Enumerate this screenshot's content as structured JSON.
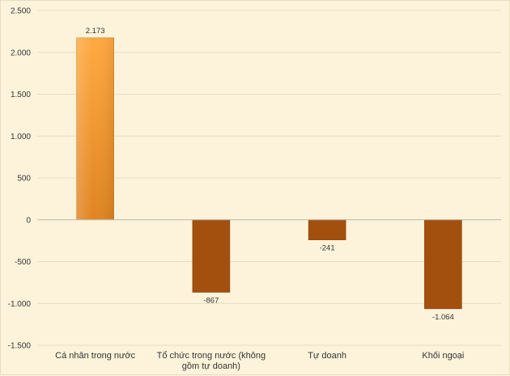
{
  "colors": {
    "background": "#fdf3da",
    "grid": "#e6dcc4",
    "axis": "#bbbbbb",
    "positive_top": "#ffa940",
    "positive_bottom": "#e08420",
    "negative": "#a34f0e",
    "text": "#333333"
  },
  "chart_data": {
    "type": "bar",
    "title": "",
    "xlabel": "",
    "ylabel": "",
    "grid": true,
    "legend": "none",
    "ylim": [
      -1500,
      2500
    ],
    "yticks": [
      2500,
      2000,
      1500,
      1000,
      500,
      0,
      -500,
      -1000,
      -1500
    ],
    "ytick_labels": [
      "2.500",
      "2.000",
      "1.500",
      "1.000",
      "500",
      "0",
      "-500",
      "-1.000",
      "-1.500"
    ],
    "categories": [
      [
        "Cá nhân trong nước"
      ],
      [
        "Tổ chức trong nước (không",
        "gồm tự doanh)"
      ],
      [
        "Tự doanh"
      ],
      [
        "Khối ngoại"
      ]
    ],
    "values": [
      2173,
      -867,
      -241,
      -1064
    ],
    "data_labels": [
      "2.173",
      "-867",
      "-241",
      "-1.064"
    ]
  }
}
